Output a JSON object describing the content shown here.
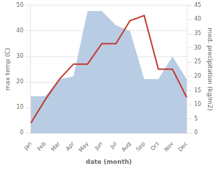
{
  "chart_data": {
    "type": "line",
    "xlabel": "date (month)",
    "ylabel": "max temp (C)",
    "y2label": "med. precipitation (kg/m2)",
    "categories": [
      "Jan",
      "Feb",
      "Mar",
      "Apr",
      "May",
      "Jun",
      "Jul",
      "Aug",
      "Sep",
      "Oct",
      "Nov",
      "Dec"
    ],
    "series": [
      {
        "type": "area",
        "color": "#b8cce4",
        "axis": "y2",
        "values": [
          13,
          13,
          19,
          20,
          43,
          43,
          38,
          36,
          19,
          19,
          27,
          19
        ]
      },
      {
        "type": "line",
        "color": "#c0392b",
        "values": [
          4,
          13,
          21,
          27,
          27,
          35,
          35,
          44,
          46,
          25,
          25,
          14
        ]
      }
    ],
    "ylim": [
      0,
      50
    ],
    "yticks": [
      0,
      10,
      20,
      30,
      40,
      50
    ],
    "y2lim": [
      0,
      45
    ],
    "y2ticks": [
      0,
      5,
      10,
      15,
      20,
      25,
      30,
      35,
      40,
      45
    ],
    "grid": true
  }
}
